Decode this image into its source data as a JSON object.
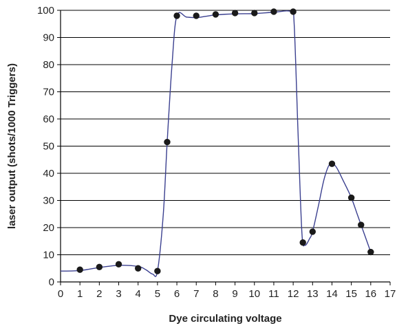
{
  "chart_data": {
    "type": "line",
    "title": "",
    "xlabel": "Dye circulating voltage",
    "ylabel": "laser output (shots/1000 Triggers)",
    "xlim": [
      0,
      17
    ],
    "ylim": [
      0,
      100
    ],
    "x_ticks": [
      0,
      1,
      2,
      3,
      4,
      5,
      6,
      7,
      8,
      9,
      10,
      11,
      12,
      13,
      14,
      15,
      16,
      17
    ],
    "y_ticks": [
      0,
      10,
      20,
      30,
      40,
      50,
      60,
      70,
      80,
      90,
      100
    ],
    "grid": "horizontal",
    "legend": "none",
    "colors": {
      "line": "#3a3f8f",
      "marker": "#1a1a1a",
      "grid": "#000000"
    },
    "series": [
      {
        "points": [
          [
            1,
            4.5
          ],
          [
            2,
            5.5
          ],
          [
            3,
            6.5
          ],
          [
            4,
            5
          ],
          [
            5,
            4
          ],
          [
            5.5,
            51.5
          ],
          [
            6,
            98
          ],
          [
            7,
            98
          ],
          [
            8,
            98.5
          ],
          [
            9,
            99
          ],
          [
            10,
            99
          ],
          [
            11,
            99.5
          ],
          [
            12,
            99.5
          ],
          [
            12.5,
            14.5
          ],
          [
            13,
            18.5
          ],
          [
            14,
            43.5
          ],
          [
            15,
            31
          ],
          [
            15.5,
            21
          ],
          [
            16,
            11
          ]
        ],
        "curve": [
          [
            0,
            4
          ],
          [
            1,
            4.2
          ],
          [
            2,
            5.3
          ],
          [
            3,
            6.1
          ],
          [
            4,
            5.7
          ],
          [
            4.4,
            4.5
          ],
          [
            4.75,
            2.9
          ],
          [
            5,
            4
          ],
          [
            5.3,
            25
          ],
          [
            5.5,
            51.5
          ],
          [
            5.75,
            80
          ],
          [
            6,
            98
          ],
          [
            6.5,
            97.5
          ],
          [
            7,
            97.3
          ],
          [
            7.5,
            97.8
          ],
          [
            8,
            98.3
          ],
          [
            9,
            98.7
          ],
          [
            10,
            98.8
          ],
          [
            11,
            99.3
          ],
          [
            11.9,
            99.5
          ],
          [
            12.05,
            95
          ],
          [
            12.25,
            55
          ],
          [
            12.45,
            18
          ],
          [
            12.6,
            13.5
          ],
          [
            12.85,
            16
          ],
          [
            13,
            18.5
          ],
          [
            13.3,
            28
          ],
          [
            13.6,
            38
          ],
          [
            13.9,
            43.5
          ],
          [
            14.2,
            42.5
          ],
          [
            14.6,
            37
          ],
          [
            15,
            31
          ],
          [
            15.3,
            25
          ],
          [
            15.5,
            21
          ],
          [
            15.8,
            15
          ],
          [
            16,
            11
          ]
        ]
      }
    ]
  }
}
